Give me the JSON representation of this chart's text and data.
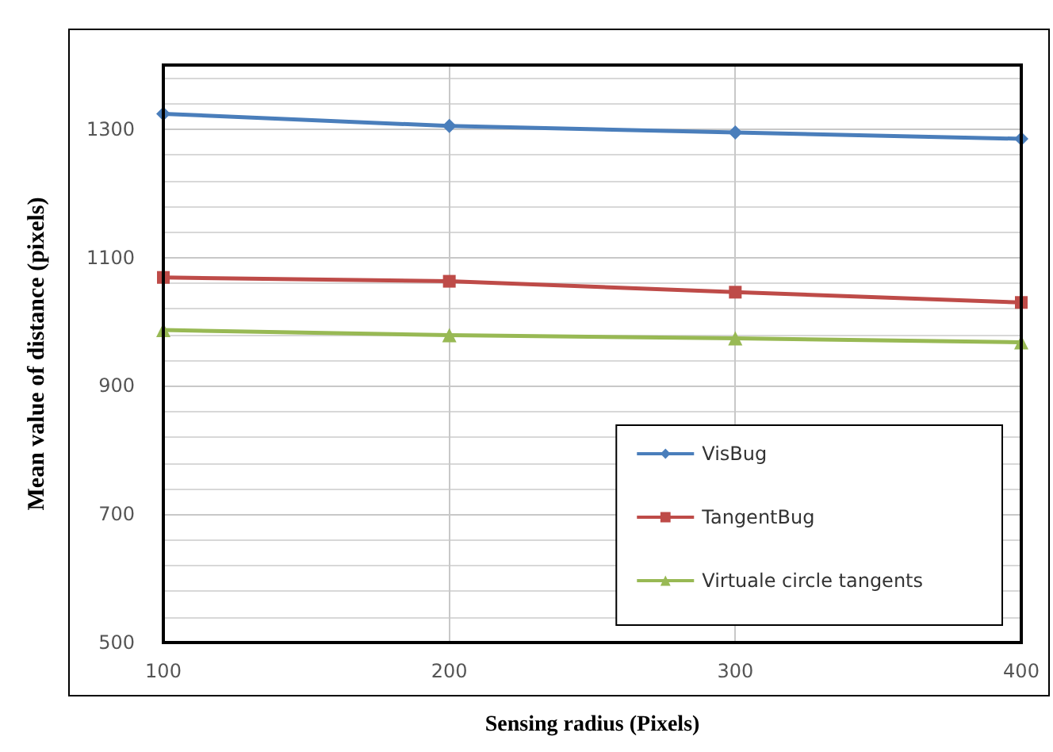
{
  "chart_data": {
    "type": "line",
    "xlabel": "Sensing radius (Pixels)",
    "ylabel": "Mean value of distance (pixels)",
    "x": [
      100,
      200,
      300,
      400
    ],
    "series": [
      {
        "name": "VisBug",
        "color": "#4a7ebb",
        "marker": "diamond",
        "values": [
          1324,
          1305,
          1295,
          1285
        ]
      },
      {
        "name": "TangentBug",
        "color": "#be4b48",
        "marker": "square",
        "values": [
          1069,
          1063,
          1046,
          1030
        ]
      },
      {
        "name": "Virtuale circle tangents",
        "color": "#98b954",
        "marker": "triangle",
        "values": [
          987,
          979,
          974,
          968
        ]
      }
    ],
    "xlim": [
      100,
      400
    ],
    "xticks": [
      100,
      200,
      300,
      400
    ],
    "ylim": [
      500,
      1400
    ],
    "yticks": [
      500,
      700,
      900,
      1100,
      1300
    ],
    "grid": true,
    "legend": "bottom right"
  }
}
